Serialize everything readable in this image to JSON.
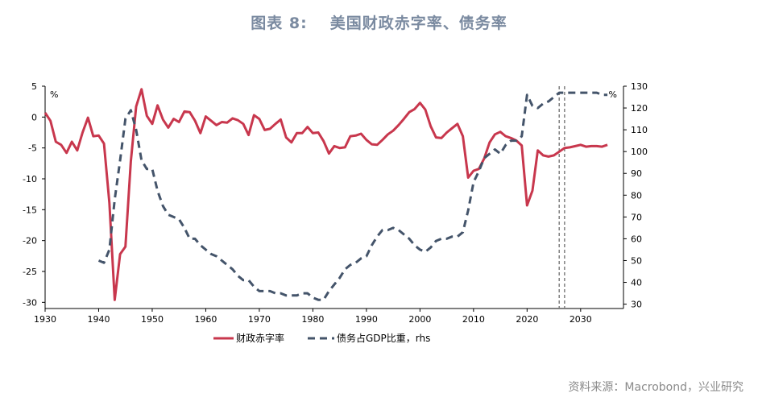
{
  "title_prefix": "图表 8:",
  "title_main": "美国财政赤字率、债务率",
  "source": "资料来源：Macrobond，兴业研究",
  "chart_data": {
    "type": "line",
    "left_unit": "%",
    "right_unit": "%",
    "x_ticks": [
      "1930",
      "1940",
      "1950",
      "1960",
      "1970",
      "1980",
      "1990",
      "2000",
      "2010",
      "2020",
      "2030"
    ],
    "x_range": [
      1930,
      2038
    ],
    "y_left_ticks": [
      "5",
      "0",
      "-5",
      "-10",
      "-15",
      "-20",
      "-25",
      "-30"
    ],
    "y_left_range": [
      -31,
      5
    ],
    "y_right_ticks": [
      "130",
      "120",
      "110",
      "100",
      "90",
      "80",
      "70",
      "60",
      "50",
      "40",
      "30"
    ],
    "y_right_range": [
      28,
      130
    ],
    "forecast_lines_x": [
      2026,
      2027
    ],
    "series": [
      {
        "name": "财政赤字率",
        "axis": "left",
        "color": "#c8374d",
        "style": "solid",
        "x": [
          1930,
          1931,
          1932,
          1933,
          1934,
          1935,
          1936,
          1937,
          1938,
          1939,
          1940,
          1941,
          1942,
          1943,
          1944,
          1945,
          1946,
          1947,
          1948,
          1949,
          1950,
          1951,
          1952,
          1953,
          1954,
          1955,
          1956,
          1957,
          1958,
          1959,
          1960,
          1961,
          1962,
          1963,
          1964,
          1965,
          1966,
          1967,
          1968,
          1969,
          1970,
          1971,
          1972,
          1973,
          1974,
          1975,
          1976,
          1977,
          1978,
          1979,
          1980,
          1981,
          1982,
          1983,
          1984,
          1985,
          1986,
          1987,
          1988,
          1989,
          1990,
          1991,
          1992,
          1993,
          1994,
          1995,
          1996,
          1997,
          1998,
          1999,
          2000,
          2001,
          2002,
          2003,
          2004,
          2005,
          2006,
          2007,
          2008,
          2009,
          2010,
          2011,
          2012,
          2013,
          2014,
          2015,
          2016,
          2017,
          2018,
          2019,
          2020,
          2021,
          2022,
          2023,
          2024,
          2025,
          2026,
          2027,
          2028,
          2029,
          2030,
          2031,
          2032,
          2033,
          2034,
          2035
        ],
        "values": [
          0.7,
          -0.6,
          -4.0,
          -4.5,
          -5.8,
          -4.0,
          -5.4,
          -2.5,
          -0.1,
          -3.1,
          -3.0,
          -4.3,
          -13.9,
          -29.6,
          -22.2,
          -21.0,
          -7.2,
          1.7,
          4.5,
          0.2,
          -1.1,
          1.9,
          -0.4,
          -1.7,
          -0.3,
          -0.8,
          0.9,
          0.8,
          -0.6,
          -2.6,
          0.1,
          -0.6,
          -1.3,
          -0.8,
          -0.9,
          -0.2,
          -0.5,
          -1.1,
          -2.9,
          0.3,
          -0.3,
          -2.1,
          -1.9,
          -1.1,
          -0.4,
          -3.3,
          -4.1,
          -2.6,
          -2.6,
          -1.6,
          -2.6,
          -2.5,
          -3.9,
          -5.9,
          -4.7,
          -5.0,
          -4.9,
          -3.1,
          -3.0,
          -2.7,
          -3.7,
          -4.4,
          -4.5,
          -3.7,
          -2.8,
          -2.2,
          -1.3,
          -0.3,
          0.8,
          1.3,
          2.3,
          1.2,
          -1.5,
          -3.3,
          -3.4,
          -2.5,
          -1.8,
          -1.1,
          -3.1,
          -9.8,
          -8.7,
          -8.4,
          -6.7,
          -4.1,
          -2.8,
          -2.4,
          -3.1,
          -3.4,
          -3.8,
          -4.6,
          -14.3,
          -11.9,
          -5.4,
          -6.2,
          -6.4,
          -6.2,
          -5.6,
          -5.0,
          -4.9,
          -4.7,
          -4.5,
          -4.8,
          -4.7,
          -4.7,
          -4.8,
          -4.5
        ]
      },
      {
        "name": "债务占GDP比重，rhs",
        "axis": "right",
        "color": "#44546a",
        "style": "dashed",
        "x": [
          1940,
          1941,
          1942,
          1943,
          1944,
          1945,
          1946,
          1947,
          1948,
          1949,
          1950,
          1951,
          1952,
          1953,
          1954,
          1955,
          1956,
          1957,
          1958,
          1959,
          1960,
          1961,
          1962,
          1963,
          1964,
          1965,
          1966,
          1967,
          1968,
          1969,
          1970,
          1971,
          1972,
          1973,
          1974,
          1975,
          1976,
          1977,
          1978,
          1979,
          1980,
          1981,
          1982,
          1983,
          1984,
          1985,
          1986,
          1987,
          1988,
          1989,
          1990,
          1991,
          1992,
          1993,
          1994,
          1995,
          1996,
          1997,
          1998,
          1999,
          2000,
          2001,
          2002,
          2003,
          2004,
          2005,
          2006,
          2007,
          2008,
          2009,
          2010,
          2011,
          2012,
          2013,
          2014,
          2015,
          2016,
          2017,
          2018,
          2019,
          2020,
          2021,
          2022,
          2023,
          2024,
          2025,
          2026,
          2027,
          2028,
          2029,
          2030,
          2031,
          2032,
          2033,
          2034,
          2035
        ],
        "values": [
          50,
          49,
          55,
          78,
          96,
          115,
          119,
          110,
          96,
          92,
          92,
          82,
          75,
          71,
          70,
          69,
          65,
          60,
          60,
          57,
          55,
          53,
          52,
          50,
          48,
          46,
          43,
          41,
          41,
          38,
          36,
          36,
          36,
          35,
          35,
          34,
          34,
          34,
          35,
          35,
          33,
          32,
          32,
          36,
          39,
          42,
          46,
          48,
          49,
          51,
          52,
          57,
          61,
          64,
          64,
          65,
          64,
          62,
          60,
          57,
          55,
          54,
          56,
          59,
          60,
          60,
          61,
          61,
          63,
          73,
          86,
          91,
          97,
          99,
          101,
          99,
          103,
          105,
          105,
          107,
          126,
          121,
          120,
          122,
          123,
          125,
          127,
          127,
          127,
          127,
          127,
          127,
          127,
          127,
          126,
          126
        ]
      }
    ]
  }
}
